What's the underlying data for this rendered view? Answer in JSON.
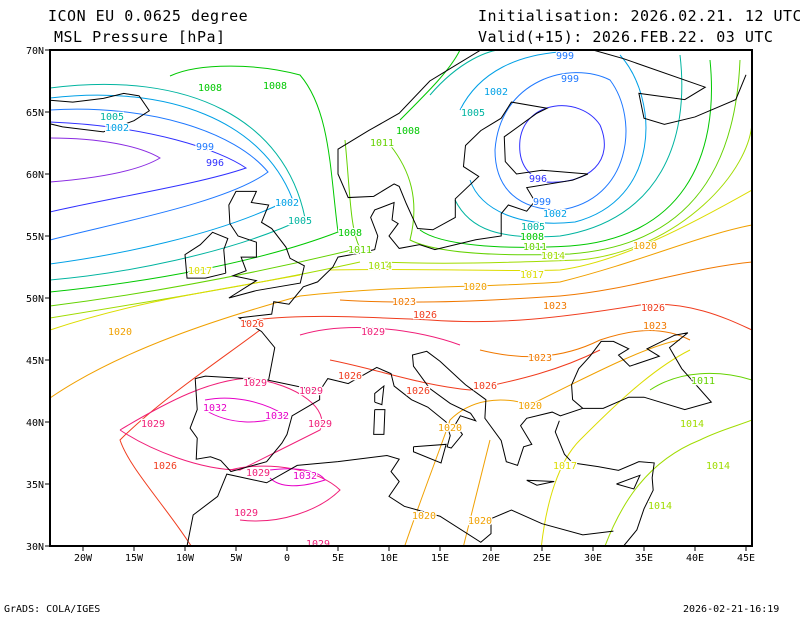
{
  "header": {
    "model": "ICON EU 0.0625 degree",
    "field": "MSL Pressure [hPa]",
    "init": "Initialisation: 2026.02.21. 12 UTC",
    "valid": "Valid(+15): 2026.FEB.22. 03 UTC"
  },
  "axes": {
    "lon_ticks": [
      "20W",
      "15W",
      "10W",
      "5W",
      "0",
      "5E",
      "10E",
      "15E",
      "20E",
      "25E",
      "30E",
      "35E",
      "40E",
      "45E"
    ],
    "lat_ticks": [
      "30N",
      "35N",
      "40N",
      "45N",
      "50N",
      "55N",
      "60N",
      "65N",
      "70N"
    ]
  },
  "contour_labels": [
    "1008",
    "1008",
    "1005",
    "1002",
    "999",
    "996",
    "1002",
    "1005",
    "1008",
    "1011",
    "1014",
    "1017",
    "1020",
    "1020",
    "1017",
    "1014",
    "1011",
    "1008",
    "1005",
    "1002",
    "999",
    "996",
    "1005",
    "1002",
    "999",
    "999",
    "1008",
    "1011",
    "1023",
    "1026",
    "1023",
    "1026",
    "1023",
    "1020",
    "1023",
    "1026",
    "1029",
    "1026",
    "1026",
    "1026",
    "1029",
    "1032",
    "1032",
    "1029",
    "1029",
    "1029",
    "1026",
    "1029",
    "1032",
    "1029",
    "1029",
    "1020",
    "1020",
    "1020",
    "1017",
    "1014",
    "1014",
    "1011",
    "1014",
    "1020"
  ],
  "colors": {
    "993": "#8a2be2",
    "996": "#3030ff",
    "999": "#1e78ff",
    "1002": "#00a0e6",
    "1005": "#00b4a0",
    "1008": "#00c800",
    "1011": "#64d200",
    "1014": "#a0dc00",
    "1017": "#dcdc00",
    "1020": "#f0a000",
    "1023": "#f07800",
    "1026": "#f03c1e",
    "1029": "#f01e78",
    "1032": "#e600c8"
  },
  "footer": {
    "left": "GrADS: COLA/IGES",
    "right": "2026-02-21-16:19"
  }
}
